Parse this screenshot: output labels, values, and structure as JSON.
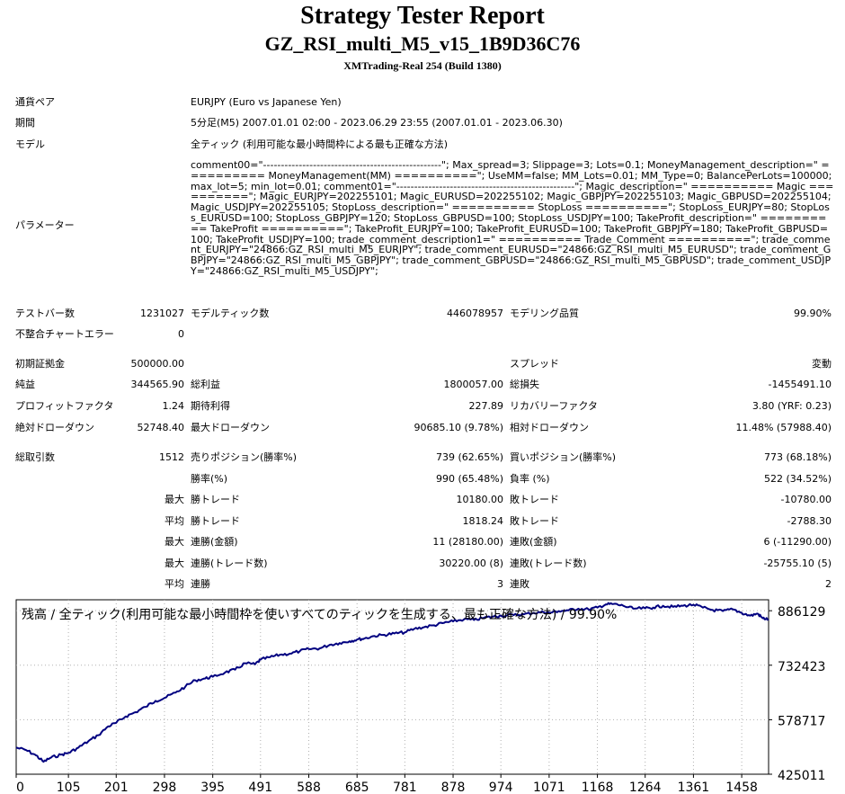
{
  "header": {
    "title": "Strategy Tester Report",
    "subtitle": "GZ_RSI_multi_M5_v15_1B9D36C76",
    "server": "XMTrading-Real 254 (Build 1380)"
  },
  "settings": {
    "symbol_label": "通貨ペア",
    "symbol_value": "EURJPY (Euro vs Japanese Yen)",
    "period_label": "期間",
    "period_value": "5分足(M5) 2007.01.01 02:00 - 2023.06.29 23:55 (2007.01.01 - 2023.06.30)",
    "model_label": "モデル",
    "model_value": "全ティック (利用可能な最小時間枠による最も正確な方法)",
    "params_label": "パラメーター",
    "params_value": "comment00=\"--------------------------------------------------\"; Max_spread=3; Slippage=3; Lots=0.1; MoneyManagement_description=\" ========== MoneyManagement(MM) ==========\"; UseMM=false; MM_Lots=0.01; MM_Type=0; BalancePerLots=100000; max_lot=5; min_lot=0.01; comment01=\"--------------------------------------------------\"; Magic_description=\" ========== Magic ==========\"; Magic_EURJPY=202255101; Magic_EURUSD=202255102; Magic_GBPJPY=202255103; Magic_GBPUSD=202255104; Magic_USDJPY=202255105; StopLoss_description=\" ========== StopLoss ==========\"; StopLoss_EURJPY=80; StopLoss_EURUSD=100; StopLoss_GBPJPY=120; StopLoss_GBPUSD=100; StopLoss_USDJPY=100; TakeProfit_description=\" ========== TakeProfit ==========\"; TakeProfit_EURJPY=100; TakeProfit_EURUSD=100; TakeProfit_GBPJPY=180; TakeProfit_GBPUSD=100; TakeProfit_USDJPY=100; trade_comment_description1=\" ========== Trade_Comment ==========\"; trade_comment_EURJPY=\"24866:GZ_RSI_multi_M5_EURJPY\"; trade_comment_EURUSD=\"24866:GZ_RSI_multi_M5_EURUSD\"; trade_comment_GBPJPY=\"24866:GZ_RSI_multi_M5_GBPJPY\"; trade_comment_GBPUSD=\"24866:GZ_RSI_multi_M5_GBPUSD\"; trade_comment_USDJPY=\"24866:GZ_RSI_multi_M5_USDJPY\";"
  },
  "stats": {
    "bars_label": "テストバー数",
    "bars_value": "1231027",
    "ticks_label": "モデルティック数",
    "ticks_value": "446078957",
    "quality_label": "モデリング品質",
    "quality_value": "99.90%",
    "mismatch_label": "不整合チャートエラー",
    "mismatch_value": "0",
    "deposit_label": "初期証拠金",
    "deposit_value": "500000.00",
    "spread_label": "スプレッド",
    "spread_value": "変動",
    "net_label": "純益",
    "net_value": "344565.90",
    "gross_profit_label": "総利益",
    "gross_profit_value": "1800057.00",
    "gross_loss_label": "総損失",
    "gross_loss_value": "-1455491.10",
    "pf_label": "プロフィットファクタ",
    "pf_value": "1.24",
    "expected_label": "期待利得",
    "expected_value": "227.89",
    "recovery_label": "リカバリーファクタ",
    "recovery_value": "3.80 (YRF: 0.23)",
    "abs_dd_label": "絶対ドローダウン",
    "abs_dd_value": "52748.40",
    "max_dd_label": "最大ドローダウン",
    "max_dd_value": "90685.10 (9.78%)",
    "rel_dd_label": "相対ドローダウン",
    "rel_dd_value": "11.48% (57988.40)",
    "trades_label": "総取引数",
    "trades_value": "1512",
    "short_label": "売りポジション(勝率%)",
    "short_value": "739 (62.65%)",
    "long_label": "買いポジション(勝率%)",
    "long_value": "773 (68.18%)",
    "win_label": "勝率(%)",
    "win_value": "990 (65.48%)",
    "loss_label": "負率 (%)",
    "loss_value": "522 (34.52%)",
    "max_word": "最大",
    "avg_word": "平均",
    "largest_win_label": "勝トレード",
    "largest_win_value": "10180.00",
    "largest_loss_label": "敗トレード",
    "largest_loss_value": "-10780.00",
    "avg_win_label": "勝トレード",
    "avg_win_value": "1818.24",
    "avg_loss_label": "敗トレード",
    "avg_loss_value": "-2788.30",
    "cons_wins_money_label": "連勝(金額)",
    "cons_wins_money_value": "11 (28180.00)",
    "cons_losses_money_label": "連敗(金額)",
    "cons_losses_money_value": "6 (-11290.00)",
    "cons_wins_trades_label": "連勝(トレード数)",
    "cons_wins_trades_value": "30220.00 (8)",
    "cons_losses_trades_label": "連敗(トレード数)",
    "cons_losses_trades_value": "-25755.10 (5)",
    "avg_wins_label": "連勝",
    "avg_wins_value": "3",
    "avg_losses_label": "連敗",
    "avg_losses_value": "2"
  },
  "chart_data": {
    "type": "line",
    "title": "残高 / 全ティック(利用可能な最小時間枠を使いすべてのティックを生成する、最も正確な方法) / 99.90%",
    "xlabel": "",
    "ylabel": "",
    "x_ticks": [
      "0",
      "105",
      "201",
      "298",
      "395",
      "491",
      "588",
      "685",
      "781",
      "878",
      "974",
      "1071",
      "1168",
      "1264",
      "1361",
      "1458"
    ],
    "y_ticks": [
      "886129",
      "732423",
      "578717",
      "425011"
    ],
    "xlim": [
      0,
      1512
    ],
    "ylim": [
      425011,
      917000
    ],
    "grid": true,
    "line_color": "#000080",
    "series": [
      {
        "x": [
          0,
          20,
          40,
          55,
          70,
          90,
          105,
          125,
          145,
          165,
          185,
          201,
          220,
          240,
          260,
          280,
          298,
          320,
          340,
          360,
          380,
          395,
          420,
          440,
          460,
          480,
          491,
          510,
          530,
          550,
          570,
          588,
          610,
          630,
          650,
          670,
          685,
          700,
          720,
          740,
          760,
          781,
          800,
          820,
          840,
          860,
          878,
          900,
          920,
          940,
          960,
          974,
          1000,
          1020,
          1040,
          1060,
          1071,
          1090,
          1110,
          1130,
          1150,
          1168,
          1185,
          1200,
          1220,
          1240,
          1264,
          1280,
          1300,
          1320,
          1340,
          1361,
          1380,
          1400,
          1420,
          1440,
          1458,
          1475,
          1490,
          1500,
          1512
        ],
        "y": [
          500000,
          493000,
          478000,
          460000,
          472000,
          480000,
          485000,
          500000,
          518000,
          535000,
          560000,
          570000,
          588000,
          600000,
          615000,
          632000,
          640000,
          655000,
          672000,
          690000,
          695000,
          700000,
          712000,
          720000,
          738000,
          735000,
          748000,
          755000,
          762000,
          765000,
          772000,
          778000,
          780000,
          790000,
          795000,
          800000,
          805000,
          808000,
          815000,
          818000,
          822000,
          825000,
          835000,
          840000,
          845000,
          852000,
          856000,
          862000,
          860000,
          866000,
          870000,
          872000,
          874000,
          876000,
          880000,
          882000,
          880000,
          885000,
          887000,
          892000,
          890000,
          895000,
          904000,
          905000,
          900000,
          892000,
          893000,
          895000,
          900000,
          897000,
          900000,
          903000,
          895000,
          888000,
          885000,
          890000,
          880000,
          872000,
          878000,
          865000,
          862000
        ]
      }
    ]
  }
}
